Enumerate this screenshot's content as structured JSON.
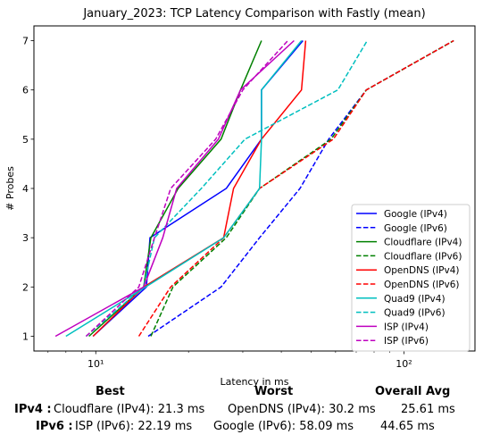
{
  "chart_data": {
    "type": "line",
    "title": "January_2023: TCP Latency Comparison with Fastly (mean)",
    "xlabel": "Latency in ms",
    "ylabel": "# Probes",
    "xscale": "log",
    "xlim": [
      6.3,
      170
    ],
    "ylim": [
      0.7,
      7.3
    ],
    "xticks": [
      {
        "value": 10,
        "label": "10¹"
      },
      {
        "value": 100,
        "label": "10²"
      }
    ],
    "yticks": [
      1,
      2,
      3,
      4,
      5,
      6,
      7
    ],
    "grid": false,
    "legend": "bottom-right",
    "series": [
      {
        "name": "Google (IPv4)",
        "color": "#0000ff",
        "dash": false,
        "points": [
          [
            9.8,
            1
          ],
          [
            14.6,
            2
          ],
          [
            15.0,
            3
          ],
          [
            26.5,
            4
          ],
          [
            34.5,
            5
          ],
          [
            34.5,
            6
          ],
          [
            47.0,
            7
          ]
        ]
      },
      {
        "name": "Google (IPv6)",
        "color": "#0000ff",
        "dash": true,
        "points": [
          [
            14.8,
            1
          ],
          [
            25.5,
            2
          ],
          [
            34.0,
            3
          ],
          [
            46.0,
            4
          ],
          [
            57.0,
            5
          ],
          [
            75.5,
            6
          ],
          [
            145,
            7
          ]
        ]
      },
      {
        "name": "Cloudflare (IPv4)",
        "color": "#008000",
        "dash": false,
        "points": [
          [
            9.5,
            1
          ],
          [
            14.3,
            2
          ],
          [
            15.1,
            3
          ],
          [
            18.5,
            4
          ],
          [
            25.5,
            5
          ],
          [
            29.5,
            6
          ],
          [
            34.5,
            7
          ]
        ]
      },
      {
        "name": "Cloudflare (IPv6)",
        "color": "#008000",
        "dash": true,
        "points": [
          [
            15.1,
            1
          ],
          [
            17.8,
            2
          ],
          [
            26.5,
            3
          ],
          [
            34.0,
            4
          ],
          [
            58.0,
            5
          ],
          [
            75.5,
            6
          ],
          [
            145,
            7
          ]
        ]
      },
      {
        "name": "OpenDNS (IPv4)",
        "color": "#ff0000",
        "dash": false,
        "points": [
          [
            9.8,
            1
          ],
          [
            14.3,
            2
          ],
          [
            26.0,
            3
          ],
          [
            28.0,
            4
          ],
          [
            34.5,
            5
          ],
          [
            46.5,
            6
          ],
          [
            48.0,
            7
          ]
        ]
      },
      {
        "name": "OpenDNS (IPv6)",
        "color": "#ff0000",
        "dash": true,
        "points": [
          [
            13.8,
            1
          ],
          [
            17.5,
            2
          ],
          [
            26.0,
            3
          ],
          [
            34.0,
            4
          ],
          [
            59.0,
            5
          ],
          [
            75.5,
            6
          ],
          [
            145,
            7
          ]
        ]
      },
      {
        "name": "Quad9 (IPv4)",
        "color": "#00bfbf",
        "dash": false,
        "points": [
          [
            8.0,
            1
          ],
          [
            14.5,
            2
          ],
          [
            26.0,
            3
          ],
          [
            34.0,
            4
          ],
          [
            34.5,
            5
          ],
          [
            34.5,
            6
          ],
          [
            46.5,
            7
          ]
        ]
      },
      {
        "name": "Quad9 (IPv6)",
        "color": "#00bfbf",
        "dash": true,
        "points": [
          [
            9.3,
            1
          ],
          [
            14.3,
            2
          ],
          [
            15.5,
            3
          ],
          [
            22.0,
            4
          ],
          [
            30.5,
            5
          ],
          [
            61.0,
            6
          ],
          [
            76.0,
            7
          ]
        ]
      },
      {
        "name": "ISP (IPv4)",
        "color": "#bf00bf",
        "dash": false,
        "points": [
          [
            7.4,
            1
          ],
          [
            14.3,
            2
          ],
          [
            16.5,
            3
          ],
          [
            18.3,
            4
          ],
          [
            25.0,
            5
          ],
          [
            29.5,
            6
          ],
          [
            44.0,
            7
          ]
        ]
      },
      {
        "name": "ISP (IPv6)",
        "color": "#bf00bf",
        "dash": true,
        "points": [
          [
            9.3,
            1
          ],
          [
            13.8,
            2
          ],
          [
            15.5,
            3
          ],
          [
            17.5,
            4
          ],
          [
            24.5,
            5
          ],
          [
            30.0,
            6
          ],
          [
            42.0,
            7
          ]
        ]
      }
    ]
  },
  "summary": {
    "headers": {
      "best": "Best",
      "worst": "Worst",
      "avg": "Overall Avg"
    },
    "rows": [
      {
        "label": "IPv4 :",
        "best": "Cloudflare (IPv4): 21.3 ms",
        "worst": "OpenDNS (IPv4): 30.2 ms",
        "avg": "25.61 ms"
      },
      {
        "label": "IPv6 :",
        "best": "ISP (IPv6): 22.19 ms",
        "worst": "Google (IPv6): 58.09 ms",
        "avg": "44.65 ms"
      }
    ]
  }
}
